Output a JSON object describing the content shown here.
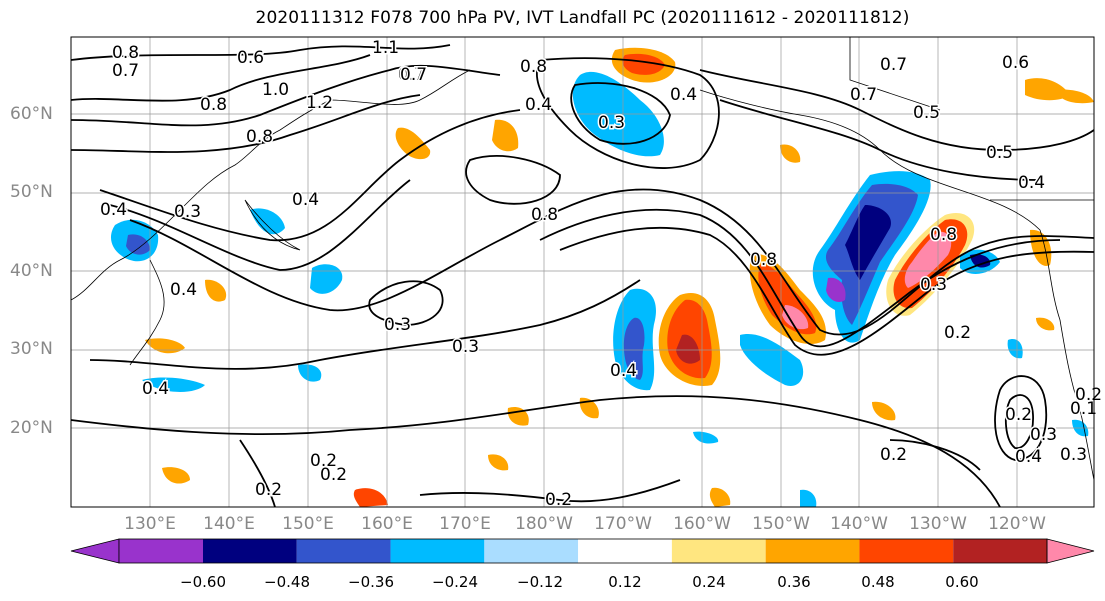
{
  "title": "2020111312 F078 700 hPa PV, IVT Landfall PC (2020111612 - 2020111812)",
  "map": {
    "lon_labels": [
      "130°E",
      "140°E",
      "150°E",
      "160°E",
      "170°E",
      "180°W",
      "170°W",
      "160°W",
      "150°W",
      "140°W",
      "130°W",
      "120°W"
    ],
    "lat_labels": [
      "60°N",
      "50°N",
      "40°N",
      "30°N",
      "20°N"
    ],
    "contour_labels": [
      "0.8",
      "0.7",
      "0.6",
      "1.1",
      "0.7",
      "1.0",
      "1.2",
      "0.8",
      "0.4",
      "0.7",
      "0.8",
      "0.3",
      "0.4",
      "0.3",
      "0.3",
      "0.4",
      "0.4",
      "0.2",
      "0.2",
      "0.2",
      "0.4",
      "0.2",
      "0.3",
      "0.8",
      "0.4",
      "0.3",
      "0.8",
      "0.7",
      "0.5",
      "0.4",
      "0.2",
      "0.3",
      "0.5",
      "0.7",
      "0.6",
      "0.8",
      "0.4",
      "0.2",
      "0.4",
      "0.8",
      "0.2",
      "0.3",
      "0.1",
      "0.2"
    ],
    "colors": {
      "min_purple": "#9933cc",
      "navy": "#00007f",
      "blue": "#3355cc",
      "cyan": "#00bbff",
      "light_blue": "#aaddff",
      "yellow": "#ffe680",
      "orange": "#ffa500",
      "red_orange": "#ff4500",
      "dark_red": "#b22222",
      "pink": "#ff88aa"
    }
  },
  "colorbar": {
    "ticks": [
      "−0.60",
      "−0.48",
      "−0.36",
      "−0.24",
      "−0.12",
      "0.12",
      "0.24",
      "0.36",
      "0.48",
      "0.60"
    ],
    "bins": [
      "#9933cc",
      "#00007f",
      "#3355cc",
      "#00bbff",
      "#aaddff",
      "#ffffff",
      "#ffe680",
      "#ffa500",
      "#ff4500",
      "#b22222",
      "#ff88aa"
    ]
  }
}
